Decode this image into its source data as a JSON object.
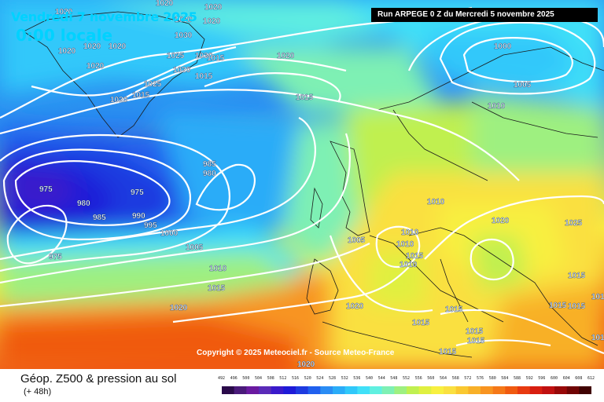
{
  "title": {
    "date": "Vendredi 7 novembre 2025",
    "time": "0:00 locale"
  },
  "run_info": "Run ARPEGE 0 Z du Mercredi 5 novembre 2025",
  "copyright": "Copyright © 2025 Meteociel.fr - Source Meteo-France",
  "footer": {
    "title": "Géop. Z500 & pression au sol",
    "subtitle": "(+ 48h)"
  },
  "colorbar": {
    "labels": [
      "492",
      "496",
      "500",
      "504",
      "508",
      "512",
      "516",
      "520",
      "524",
      "528",
      "532",
      "536",
      "540",
      "544",
      "548",
      "552",
      "556",
      "560",
      "564",
      "568",
      "572",
      "576",
      "580",
      "584",
      "588",
      "592",
      "596",
      "600",
      "604",
      "608",
      "612"
    ],
    "colors": [
      "#2a0a4a",
      "#4a1a7a",
      "#6a1aa0",
      "#5a2ab8",
      "#3a1acb",
      "#1e1ad8",
      "#1e3ae0",
      "#2060ee",
      "#2a8cf4",
      "#2aacf8",
      "#30c8fa",
      "#40e0f8",
      "#60f0e0",
      "#7ef0b4",
      "#9ef080",
      "#c0f050",
      "#e0f040",
      "#f8f040",
      "#fae040",
      "#fac830",
      "#f8b028",
      "#f89420",
      "#f57818",
      "#f05a10",
      "#e83a10",
      "#d81e10",
      "#c01010",
      "#980808",
      "#700404",
      "#400202"
    ]
  },
  "pressure_labels": [
    {
      "text": "1020"
    },
    {
      "text": "1020"
    },
    {
      "text": "1030"
    },
    {
      "text": "1020"
    },
    {
      "text": "1030"
    },
    {
      "text": "1020"
    },
    {
      "text": "1020"
    },
    {
      "text": "1020"
    },
    {
      "text": "1025"
    },
    {
      "text": "1030"
    },
    {
      "text": "1020"
    },
    {
      "text": "1015"
    },
    {
      "text": "1020"
    },
    {
      "text": "1020"
    },
    {
      "text": "1015"
    },
    {
      "text": "1020"
    },
    {
      "text": "1000"
    },
    {
      "text": "1005"
    },
    {
      "text": "1015"
    },
    {
      "text": "1025"
    },
    {
      "text": "1015"
    },
    {
      "text": "1020"
    },
    {
      "text": "1010"
    },
    {
      "text": "975"
    },
    {
      "text": "975"
    },
    {
      "text": "980"
    },
    {
      "text": "985"
    },
    {
      "text": "990"
    },
    {
      "text": "995"
    },
    {
      "text": "1000"
    },
    {
      "text": "985"
    },
    {
      "text": "980"
    },
    {
      "text": "975"
    },
    {
      "text": "1005"
    },
    {
      "text": "1010"
    },
    {
      "text": "1015"
    },
    {
      "text": "1020"
    },
    {
      "text": "1005"
    },
    {
      "text": "1010"
    },
    {
      "text": "1010"
    },
    {
      "text": "1015"
    },
    {
      "text": "1010"
    },
    {
      "text": "1010"
    },
    {
      "text": "1020"
    },
    {
      "text": "1025"
    },
    {
      "text": "1015"
    },
    {
      "text": "1015"
    },
    {
      "text": "1020"
    },
    {
      "text": "1015"
    },
    {
      "text": "1015"
    },
    {
      "text": "1015"
    },
    {
      "text": "1015"
    },
    {
      "text": "1015"
    },
    {
      "text": "1015"
    },
    {
      "text": "1015"
    },
    {
      "text": "1015"
    },
    {
      "text": "1020"
    }
  ]
}
